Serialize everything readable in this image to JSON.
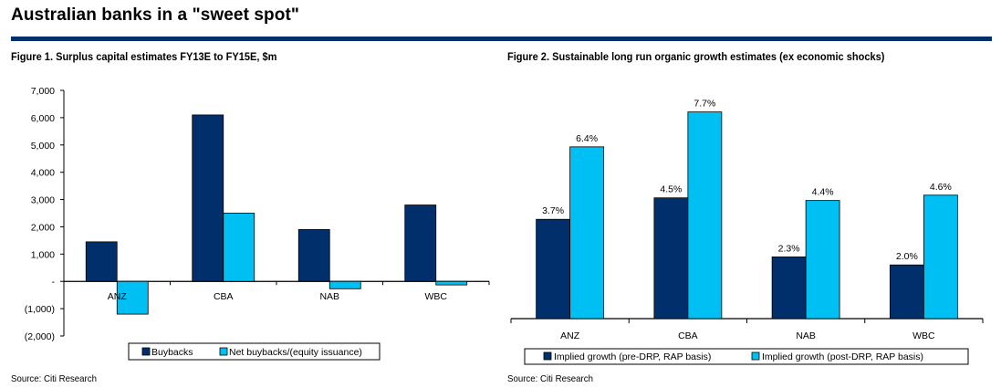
{
  "header": {
    "title": "Australian banks in a \"sweet spot\""
  },
  "colors": {
    "rule": "#002f6c",
    "series_dark": "#002f6c",
    "series_light": "#00bff3"
  },
  "chart_data": [
    {
      "type": "bar",
      "title": "Figure 1. Surplus capital estimates FY13E to FY15E, $m",
      "xlabel": "",
      "ylabel": "",
      "categories": [
        "ANZ",
        "CBA",
        "NAB",
        "WBC"
      ],
      "series": [
        {
          "name": "Buybacks",
          "values": [
            1450,
            6100,
            1900,
            2800
          ]
        },
        {
          "name": "Net buybacks/(equity issuance)",
          "values": [
            -1200,
            2500,
            -270,
            -130
          ]
        }
      ],
      "ylim": [
        -2000,
        7000
      ],
      "yticks": [
        7000,
        6000,
        5000,
        4000,
        3000,
        2000,
        1000,
        0,
        -1000,
        -2000
      ],
      "ytick_labels": [
        "7,000",
        "6,000",
        "5,000",
        "4,000",
        "3,000",
        "2,000",
        "1,000",
        "-",
        "(1,000)",
        "(2,000)"
      ],
      "grid": false,
      "legend": "bottom",
      "source": "Source: Citi Research"
    },
    {
      "type": "bar",
      "title": "Figure 2. Sustainable long run organic growth estimates (ex economic shocks)",
      "xlabel": "",
      "ylabel": "",
      "categories": [
        "ANZ",
        "CBA",
        "NAB",
        "WBC"
      ],
      "series": [
        {
          "name": "Implied growth (pre-DRP, RAP basis)",
          "values": [
            3.7,
            4.5,
            2.3,
            2.0
          ],
          "labels": [
            "3.7%",
            "4.5%",
            "2.3%",
            "2.0%"
          ]
        },
        {
          "name": "Implied growth (post-DRP, RAP basis)",
          "values": [
            6.4,
            7.7,
            4.4,
            4.6
          ],
          "labels": [
            "6.4%",
            "7.7%",
            "4.4%",
            "4.6%"
          ]
        }
      ],
      "ylim": [
        0,
        8.5
      ],
      "grid": false,
      "legend": "bottom",
      "source": "Source: Citi Research"
    }
  ]
}
